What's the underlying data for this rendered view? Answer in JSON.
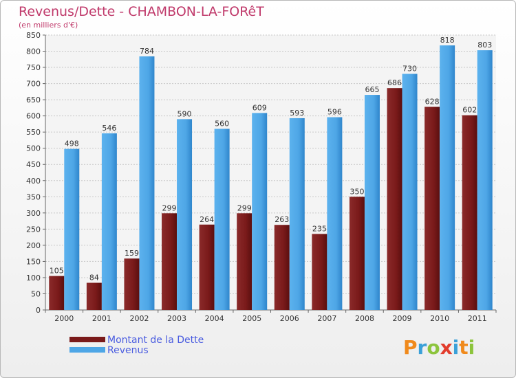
{
  "chart_data": {
    "type": "bar",
    "title": "Revenus/Dette - CHAMBON-LA-FORêT",
    "subtitle": "(en milliers d'€)",
    "categories": [
      "2000",
      "2001",
      "2002",
      "2003",
      "2004",
      "2005",
      "2006",
      "2007",
      "2008",
      "2009",
      "2010",
      "2011"
    ],
    "series": [
      {
        "name": "Montant de la Dette",
        "color": "#7a1a1a",
        "values": [
          105,
          84,
          159,
          299,
          264,
          299,
          263,
          235,
          350,
          686,
          628,
          602
        ]
      },
      {
        "name": "Revenus",
        "color": "#4ea6e6",
        "values": [
          498,
          546,
          784,
          590,
          560,
          609,
          593,
          596,
          665,
          730,
          818,
          803
        ]
      }
    ],
    "ylim": [
      0,
      850
    ],
    "yticks": [
      0,
      50,
      100,
      150,
      200,
      250,
      300,
      350,
      400,
      450,
      500,
      550,
      600,
      650,
      700,
      750,
      800,
      850
    ],
    "grid": true,
    "legend": "bottom-left"
  },
  "logo": {
    "letters": [
      "P",
      "r",
      "o",
      "x",
      "i",
      "t",
      "i"
    ],
    "colors": [
      "#f08a1c",
      "#3aa0d8",
      "#8cc43c",
      "#e23c2c",
      "#3aa0d8",
      "#f08a1c",
      "#8cc43c"
    ]
  }
}
